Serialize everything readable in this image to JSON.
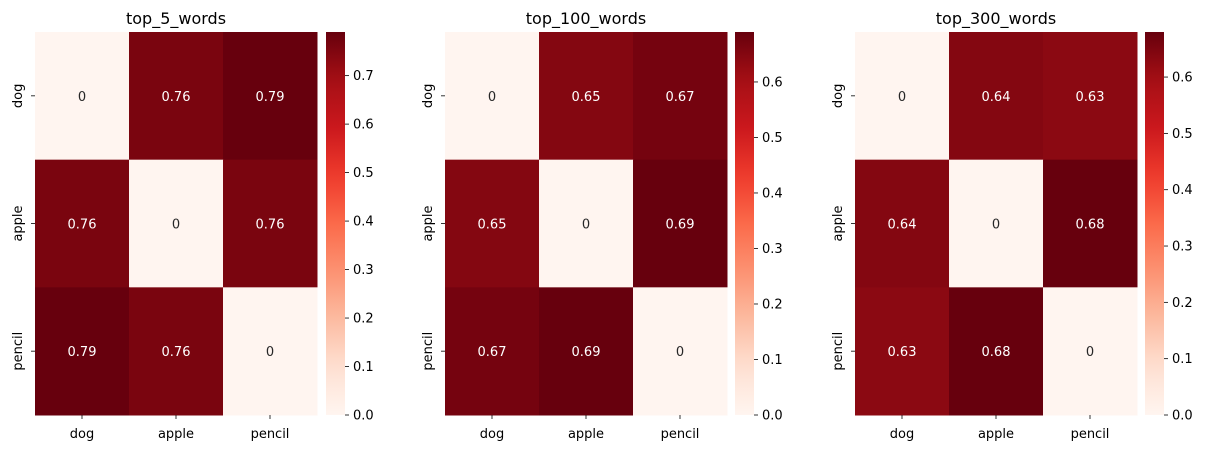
{
  "chart_data": [
    {
      "type": "heatmap",
      "title": "top_5_words",
      "x_categories": [
        "dog",
        "apple",
        "pencil"
      ],
      "y_categories": [
        "dog",
        "apple",
        "pencil"
      ],
      "values": [
        [
          0,
          0.76,
          0.79
        ],
        [
          0.76,
          0,
          0.76
        ],
        [
          0.79,
          0.76,
          0
        ]
      ],
      "annotations": [
        [
          "0",
          "0.76",
          "0.79"
        ],
        [
          "0.76",
          "0",
          "0.76"
        ],
        [
          "0.79",
          "0.76",
          "0"
        ]
      ],
      "colormap": "Reds",
      "vmin": 0,
      "vmax": 0.79,
      "colorbar_ticks": [
        "0.0",
        "0.1",
        "0.2",
        "0.3",
        "0.4",
        "0.5",
        "0.6",
        "0.7"
      ],
      "colorbar_tick_values": [
        0.0,
        0.1,
        0.2,
        0.3,
        0.4,
        0.5,
        0.6,
        0.7
      ]
    },
    {
      "type": "heatmap",
      "title": "top_100_words",
      "x_categories": [
        "dog",
        "apple",
        "pencil"
      ],
      "y_categories": [
        "dog",
        "apple",
        "pencil"
      ],
      "values": [
        [
          0,
          0.65,
          0.67
        ],
        [
          0.65,
          0,
          0.69
        ],
        [
          0.67,
          0.69,
          0
        ]
      ],
      "annotations": [
        [
          "0",
          "0.65",
          "0.67"
        ],
        [
          "0.65",
          "0",
          "0.69"
        ],
        [
          "0.67",
          "0.69",
          "0"
        ]
      ],
      "colormap": "Reds",
      "vmin": 0,
      "vmax": 0.69,
      "colorbar_ticks": [
        "0.0",
        "0.1",
        "0.2",
        "0.3",
        "0.4",
        "0.5",
        "0.6"
      ],
      "colorbar_tick_values": [
        0.0,
        0.1,
        0.2,
        0.3,
        0.4,
        0.5,
        0.6
      ]
    },
    {
      "type": "heatmap",
      "title": "top_300_words",
      "x_categories": [
        "dog",
        "apple",
        "pencil"
      ],
      "y_categories": [
        "dog",
        "apple",
        "pencil"
      ],
      "values": [
        [
          0,
          0.64,
          0.63
        ],
        [
          0.64,
          0,
          0.68
        ],
        [
          0.63,
          0.68,
          0
        ]
      ],
      "annotations": [
        [
          "0",
          "0.64",
          "0.63"
        ],
        [
          "0.64",
          "0",
          "0.68"
        ],
        [
          "0.63",
          "0.68",
          "0"
        ]
      ],
      "colormap": "Reds",
      "vmin": 0,
      "vmax": 0.68,
      "colorbar_ticks": [
        "0.0",
        "0.1",
        "0.2",
        "0.3",
        "0.4",
        "0.5",
        "0.6"
      ],
      "colorbar_tick_values": [
        0.0,
        0.1,
        0.2,
        0.3,
        0.4,
        0.5,
        0.6
      ]
    }
  ]
}
